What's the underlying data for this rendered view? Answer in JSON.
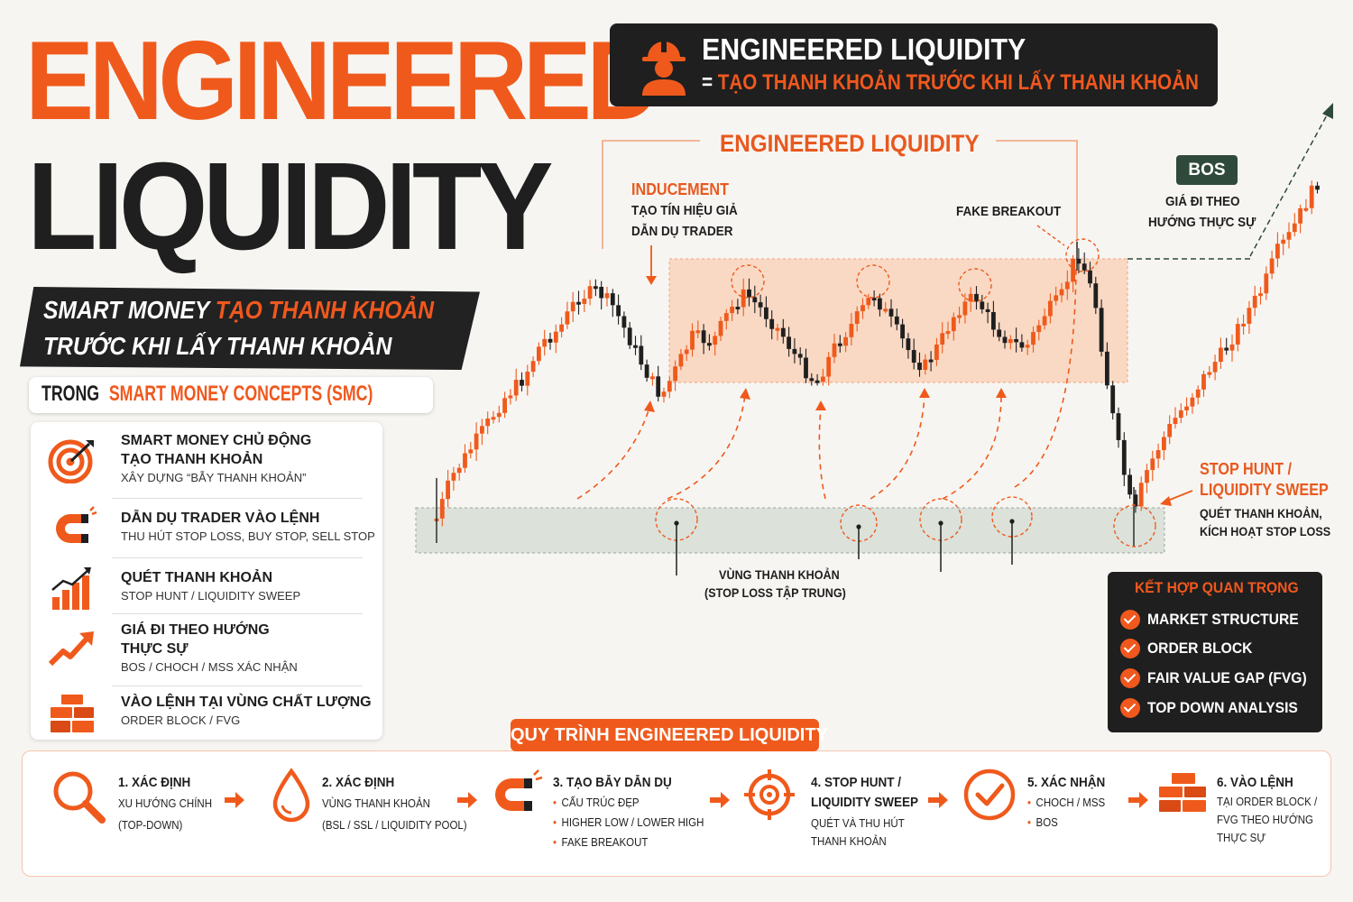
{
  "title": {
    "line1": "ENGINEERED",
    "line2": "LIQUIDITY"
  },
  "tagline": {
    "line1_white": "SMART MONEY ",
    "line1_orange": "TẠO THANH KHOẢN",
    "line2": "TRƯỚC KHI LẤY THANH KHOẢN"
  },
  "smc": {
    "prefix": "TRONG ",
    "highlight": "SMART MONEY CONCEPTS (SMC)"
  },
  "features": [
    {
      "icon": "target-icon",
      "title1": "SMART MONEY CHỦ ĐỘNG",
      "title2": "TẠO THANH KHOẢN",
      "sub": "XÂY DỰNG “BẪY THANH KHOẢN”"
    },
    {
      "icon": "magnet-icon",
      "title1": "DẪN DỤ TRADER VÀO LỆNH",
      "title2": "",
      "sub": "THU HÚT STOP LOSS, BUY STOP, SELL STOP"
    },
    {
      "icon": "bar-chart-icon",
      "title1": "QUÉT THANH KHOẢN",
      "title2": "",
      "sub": "STOP HUNT / LIQUIDITY SWEEP"
    },
    {
      "icon": "trend-up-icon",
      "title1": "GIÁ ĐI THEO HƯỚNG",
      "title2": "THỰC SỰ",
      "sub": "BOS / CHOCH / MSS XÁC NHẬN"
    },
    {
      "icon": "bricks-icon",
      "title1": "VÀO LỆNH TẠI VÙNG CHẤT LƯỢNG",
      "title2": "",
      "sub": "ORDER BLOCK / FVG"
    }
  ],
  "header": {
    "icon": "engineer-icon",
    "title": "ENGINEERED LIQUIDITY",
    "eq": "=",
    "subtitle": "TẠO THANH KHOẢN TRƯỚC KHI LẤY THANH KHOẢN"
  },
  "chart": {
    "bracket_label": "ENGINEERED LIQUIDITY",
    "inducement": {
      "title": "INDUCEMENT",
      "line1": "TẠO TÍN HIỆU GIẢ",
      "line2": "DẪN DỤ TRADER"
    },
    "fake_breakout": "FAKE BREAKOUT",
    "bos": {
      "badge": "BOS",
      "line1": "GIÁ ĐI THEO",
      "line2": "HƯỚNG THỰC SỰ"
    },
    "liquidity_zone": {
      "line1": "VÙNG THANH KHOẢN",
      "line2": "(STOP LOSS TẬP TRUNG)"
    },
    "stop_hunt": {
      "title1": "STOP HUNT /",
      "title2": "LIQUIDITY SWEEP",
      "line1": "QUÉT THANH KHOẢN,",
      "line2": "KÍCH HOẠT STOP LOSS"
    },
    "colors": {
      "bull": "#ef5a1c",
      "bear": "#1f1f1f",
      "range_fill": "#f9cfb4",
      "zone_fill": "#d7ddd6",
      "bos_line": "#2f4a3a"
    }
  },
  "combo": {
    "title": "KẾT HỢP QUAN TRỌNG",
    "items": [
      "MARKET STRUCTURE",
      "ORDER BLOCK",
      "FAIR VALUE GAP (FVG)",
      "TOP DOWN ANALYSIS"
    ]
  },
  "process": {
    "title": "QUY TRÌNH ENGINEERED LIQUIDITY",
    "steps": [
      {
        "icon": "magnifier-icon",
        "title": "1. XÁC ĐỊNH",
        "lines": [
          "XU HƯỚNG CHÍNH",
          "(TOP-DOWN)"
        ],
        "bullets": []
      },
      {
        "icon": "droplet-icon",
        "title": "2. XÁC ĐỊNH",
        "lines": [
          "VÙNG THANH KHOẢN",
          "(BSL / SSL / LIQUIDITY POOL)"
        ],
        "bullets": []
      },
      {
        "icon": "magnet-icon",
        "title": "3. TẠO BẪY DẪN DỤ",
        "lines": [],
        "bullets": [
          "CẤU TRÚC ĐẸP",
          "HIGHER LOW / LOWER HIGH",
          "FAKE BREAKOUT"
        ]
      },
      {
        "icon": "crosshair-icon",
        "title": "4. STOP HUNT /",
        "lines": [
          "LIQUIDITY SWEEP",
          "QUÉT VÀ THU HÚT",
          "THANH KHOẢN"
        ],
        "bullets": []
      },
      {
        "icon": "check-circle-icon",
        "title": "5. XÁC NHẬN",
        "lines": [],
        "bullets": [
          "CHOCH / MSS",
          "BOS"
        ]
      },
      {
        "icon": "bricks-icon",
        "title": "6. VÀO LỆNH",
        "lines": [
          "TẠI ORDER BLOCK /",
          "FVG THEO HƯỚNG",
          "THỰC SỰ"
        ],
        "bullets": []
      }
    ]
  }
}
